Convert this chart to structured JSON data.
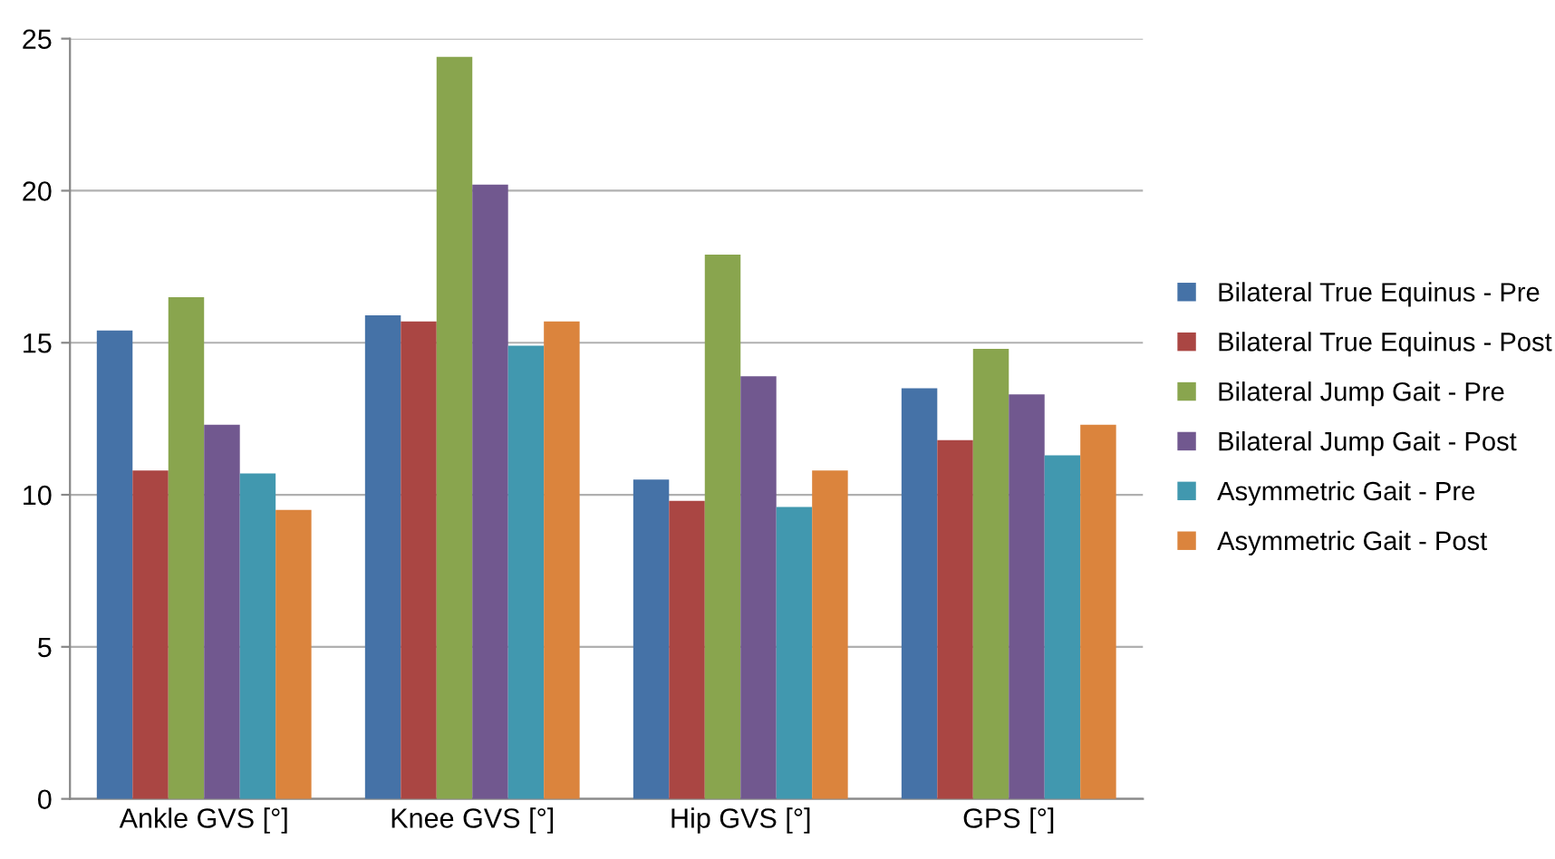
{
  "chart_data": {
    "type": "bar",
    "categories": [
      "Ankle GVS [°]",
      "Knee GVS [°]",
      "Hip GVS [°]",
      "GPS [°]"
    ],
    "series": [
      {
        "name": "Bilateral True Equinus - Pre",
        "color": "#4572a7",
        "values": [
          15.4,
          15.9,
          10.5,
          13.5
        ]
      },
      {
        "name": "Bilateral True Equinus - Post",
        "color": "#aa4643",
        "values": [
          10.8,
          15.7,
          9.8,
          11.8
        ]
      },
      {
        "name": "Bilateral Jump Gait - Pre",
        "color": "#89a54e",
        "values": [
          16.5,
          24.4,
          17.9,
          14.8
        ]
      },
      {
        "name": "Bilateral Jump Gait - Post",
        "color": "#71588f",
        "values": [
          12.3,
          20.2,
          13.9,
          13.3
        ]
      },
      {
        "name": "Asymmetric Gait - Pre",
        "color": "#4198af",
        "values": [
          10.7,
          14.9,
          9.6,
          11.3
        ]
      },
      {
        "name": "Asymmetric Gait - Post",
        "color": "#db843d",
        "values": [
          9.5,
          15.7,
          10.8,
          12.3
        ]
      }
    ],
    "ylim": [
      0,
      25
    ],
    "yticks": [
      0,
      5,
      10,
      15,
      20,
      25
    ],
    "grid": "y",
    "legend": "right"
  }
}
